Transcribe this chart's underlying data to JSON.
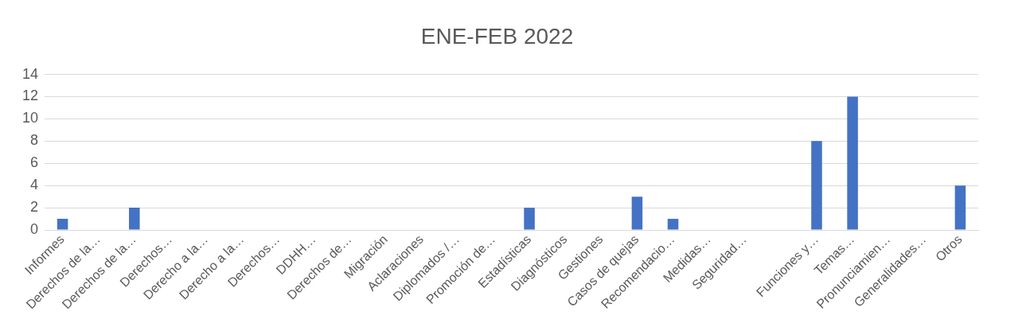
{
  "chart_data": {
    "type": "bar",
    "title": "ENE-FEB 2022",
    "categories": [
      "Informes",
      "Derechos de la…",
      "Derechos de la…",
      "Derechos…",
      "Derecho a la…",
      "Derecho a la…",
      "Derechos…",
      "DDHH…",
      "Derechos de…",
      "Migración",
      "Aclaraciones",
      "Diplomados /…",
      "Promoción de…",
      "Estadísticas",
      "Diagnósticos",
      "Gestiones",
      "Casos de quejas",
      "Recomendacio…",
      "Medidas…",
      "Seguridad…",
      null,
      "Funciones y…",
      "Temas…",
      "Pronunciamien…",
      "Generalidades…",
      "Otros"
    ],
    "values": [
      1,
      0,
      2,
      0,
      0,
      0,
      0,
      0,
      0,
      0,
      0,
      0,
      0,
      2,
      0,
      0,
      3,
      1,
      0,
      0,
      0,
      8,
      12,
      0,
      0,
      4
    ],
    "color": "#4472c4",
    "ylim": [
      0,
      14
    ],
    "yticks": [
      0,
      2,
      4,
      6,
      8,
      10,
      12,
      14
    ],
    "grid": "y",
    "legend": false
  }
}
